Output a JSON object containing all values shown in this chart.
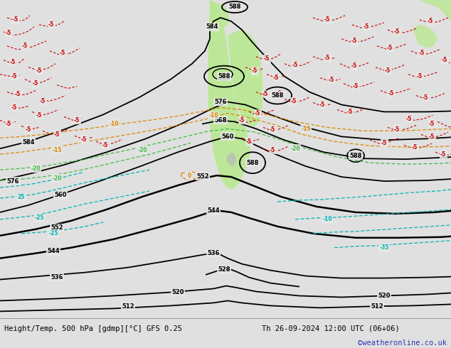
{
  "title_left": "Height/Temp. 500 hPa [gdmp][°C] GFS 0.25",
  "title_right": "Th 26-09-2024 12:00 UTC (06+06)",
  "watermark": "©weatheronline.co.uk",
  "bg_color": "#e0e0e0",
  "map_bg_color": "#e8e8e8",
  "green_color": "#b8e890",
  "gray_color": "#c0c0c0",
  "black": "#000000",
  "red": "#cc0000",
  "cyan": "#00b4b4",
  "green_line": "#44bb44",
  "orange": "#dd8800",
  "figsize": [
    6.34,
    4.9
  ],
  "dpi": 100,
  "lfs": 6.0,
  "bfs": 7.5,
  "wcolor": "#3333bb"
}
